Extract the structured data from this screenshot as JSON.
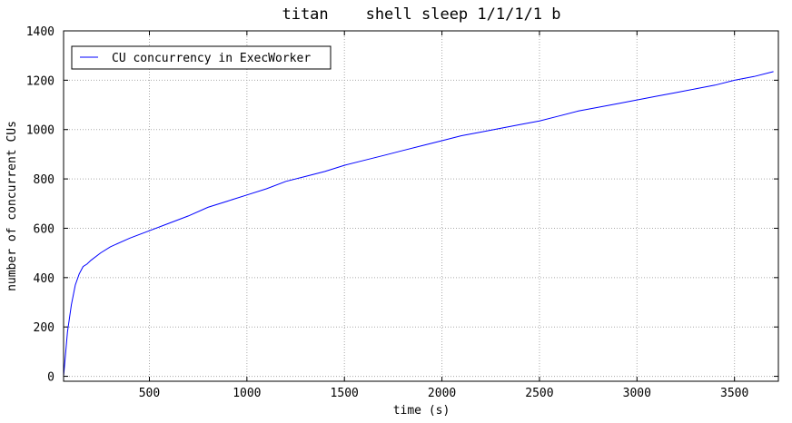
{
  "chart_data": {
    "type": "line",
    "title": "titan    shell sleep 1/1/1/1 b",
    "xlabel": "time (s)",
    "ylabel": "number of concurrent CUs",
    "xlim": [
      60,
      3725
    ],
    "ylim": [
      -20,
      1400
    ],
    "xticks": [
      500,
      1000,
      1500,
      2000,
      2500,
      3000,
      3500
    ],
    "yticks": [
      0,
      200,
      400,
      600,
      800,
      1000,
      1200,
      1400
    ],
    "grid": true,
    "legend_position": "top-left",
    "colors": {
      "series": "#0000ff",
      "grid": "#aaaaaa"
    },
    "series": [
      {
        "name": "CU concurrency in ExecWorker",
        "x": [
          60,
          80,
          100,
          120,
          140,
          160,
          180,
          200,
          250,
          300,
          400,
          500,
          600,
          700,
          800,
          900,
          1000,
          1100,
          1200,
          1300,
          1400,
          1500,
          1600,
          1700,
          1800,
          1900,
          2000,
          2100,
          2200,
          2300,
          2400,
          2500,
          2600,
          2700,
          2800,
          2900,
          3000,
          3100,
          3200,
          3300,
          3400,
          3500,
          3600,
          3700
        ],
        "values": [
          0,
          180,
          290,
          370,
          415,
          445,
          455,
          470,
          500,
          525,
          560,
          590,
          620,
          650,
          685,
          710,
          735,
          760,
          790,
          810,
          830,
          855,
          875,
          895,
          915,
          935,
          955,
          975,
          990,
          1005,
          1020,
          1035,
          1055,
          1075,
          1090,
          1105,
          1120,
          1135,
          1150,
          1165,
          1180,
          1200,
          1215,
          1235
        ]
      }
    ]
  }
}
